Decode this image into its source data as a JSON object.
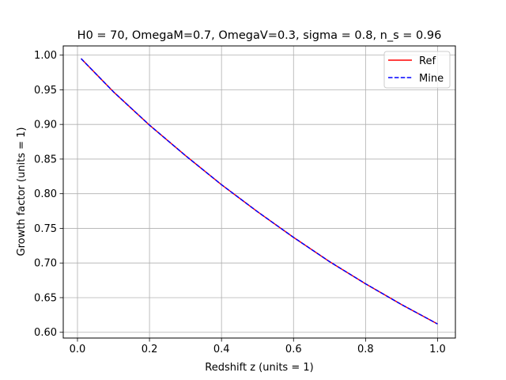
{
  "chart_data": {
    "type": "line",
    "title": "H0 = 70, OmegaM=0.7, OmegaV=0.3, sigma = 0.8, n_s = 0.96",
    "xlabel": "Redshift z (units = 1)",
    "ylabel": "Growth factor (units = 1)",
    "xlim": [
      -0.0395,
      1.0495
    ],
    "ylim": [
      0.5917,
      1.0133
    ],
    "x_ticks": [
      0.0,
      0.2,
      0.4,
      0.6,
      0.8,
      1.0
    ],
    "x_tick_labels": [
      "0.0",
      "0.2",
      "0.4",
      "0.6",
      "0.8",
      "1.0"
    ],
    "y_ticks": [
      0.6,
      0.65,
      0.7,
      0.75,
      0.8,
      0.85,
      0.9,
      0.95,
      1.0
    ],
    "y_tick_labels": [
      "0.60",
      "0.65",
      "0.70",
      "0.75",
      "0.80",
      "0.85",
      "0.90",
      "0.95",
      "1.00"
    ],
    "grid": true,
    "legend_placement": "top-right",
    "x": [
      0.01,
      0.1,
      0.2,
      0.3,
      0.4,
      0.5,
      0.6,
      0.7,
      0.8,
      0.9,
      1.0
    ],
    "series": [
      {
        "name": "Ref",
        "color": "#ff0000",
        "style": "solid",
        "values": [
          0.995,
          0.947,
          0.899,
          0.855,
          0.813,
          0.774,
          0.737,
          0.702,
          0.67,
          0.64,
          0.612
        ]
      },
      {
        "name": "Mine",
        "color": "#0000ff",
        "style": "dashed",
        "values": [
          0.995,
          0.947,
          0.899,
          0.855,
          0.813,
          0.774,
          0.737,
          0.702,
          0.67,
          0.64,
          0.612
        ]
      }
    ]
  }
}
